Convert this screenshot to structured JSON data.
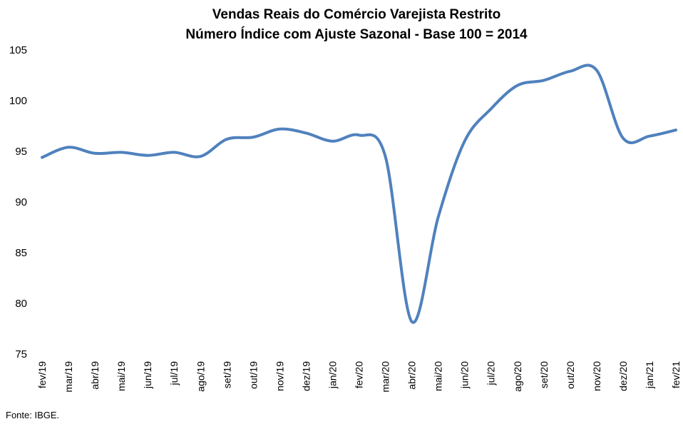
{
  "chart_data": {
    "type": "line",
    "title": "Vendas Reais do Comércio Varejista Restrito",
    "subtitle": "Número Índice com Ajuste Sazonal - Base 100 = 2014",
    "xlabel": "",
    "ylabel": "",
    "ylim": [
      75,
      105
    ],
    "yticks": [
      "75",
      "80",
      "85",
      "90",
      "95",
      "100",
      "105"
    ],
    "grid": false,
    "categories": [
      "fev/19",
      "mar/19",
      "abr/19",
      "mai/19",
      "jun/19",
      "jul/19",
      "ago/19",
      "set/19",
      "out/19",
      "nov/19",
      "dez/19",
      "jan/20",
      "fev/20",
      "mar/20",
      "abr/20",
      "mai/20",
      "jun/20",
      "jul/20",
      "ago/20",
      "set/20",
      "out/20",
      "nov/20",
      "dez/20",
      "jan/21",
      "fev/21"
    ],
    "series": [
      {
        "color": "#4f81bd",
        "values": [
          94.4,
          95.4,
          94.8,
          94.9,
          94.6,
          94.9,
          94.5,
          96.2,
          96.4,
          97.2,
          96.8,
          96.0,
          96.6,
          94.5,
          78.2,
          88.5,
          96.0,
          99.2,
          101.5,
          102.0,
          102.9,
          103.0,
          96.3,
          96.5,
          97.1
        ]
      }
    ],
    "source": "Fonte: IBGE."
  }
}
